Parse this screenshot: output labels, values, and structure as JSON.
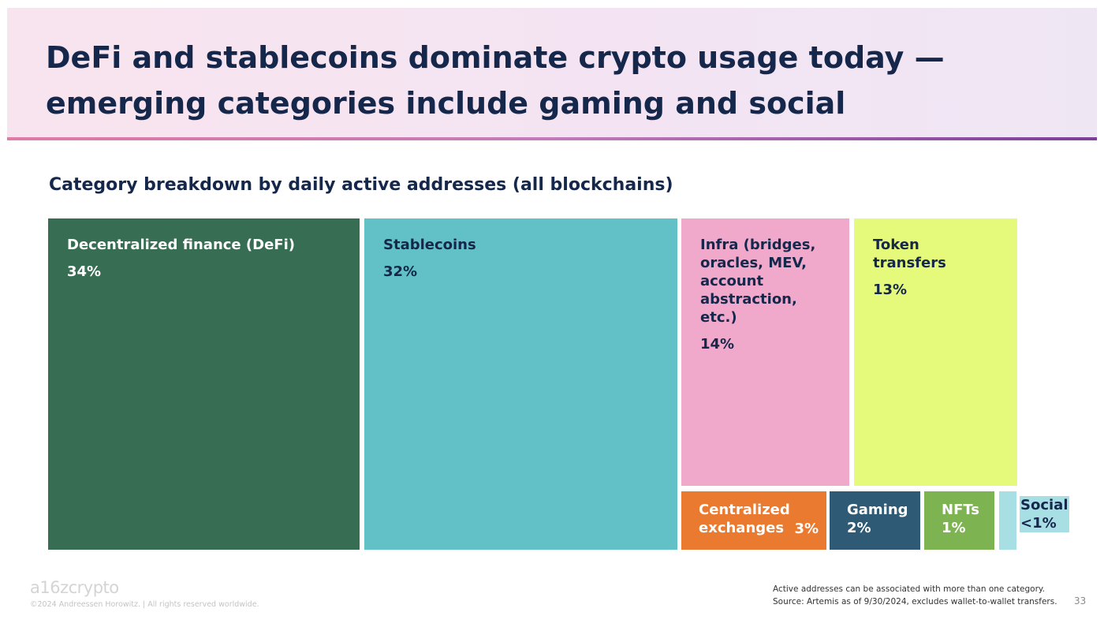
{
  "header": {
    "title": "DeFi and stablecoins dominate crypto usage today — emerging categories include gaming and social"
  },
  "chart_data": {
    "type": "treemap",
    "title": "Category breakdown by daily active addresses (all blockchains)",
    "items": [
      {
        "name": "Decentralized finance (DeFi)",
        "value_label": "34%",
        "value": 34,
        "color": "#376e53",
        "text_color": "#ffffff",
        "name_color": "#ffffff"
      },
      {
        "name": "Stablecoins",
        "value_label": "32%",
        "value": 32,
        "color": "#62c1c7",
        "text_color": "#15284b",
        "name_color": "#15284b"
      },
      {
        "name": "Infra (bridges, oracles, MEV, account abstraction, etc.)",
        "value_label": "14%",
        "value": 14,
        "color": "#f0a8cb",
        "text_color": "#15284b",
        "name_color": "#15284b"
      },
      {
        "name": "Token transfers",
        "value_label": "13%",
        "value": 13,
        "color": "#e5fa7a",
        "text_color": "#15284b",
        "name_color": "#15284b"
      },
      {
        "name": "Centralized exchanges",
        "value_label": "3%",
        "value": 3,
        "color": "#ea7a30",
        "text_color": "#ffffff",
        "name_color": "#ffffff"
      },
      {
        "name": "Gaming",
        "value_label": "2%",
        "value": 2,
        "color": "#2e5a75",
        "text_color": "#ffffff",
        "name_color": "#ffffff"
      },
      {
        "name": "NFTs",
        "value_label": "1%",
        "value": 1,
        "color": "#7db451",
        "text_color": "#ffffff",
        "name_color": "#ffffff"
      },
      {
        "name": "Social",
        "value_label": "<1%",
        "value": 0.5,
        "color": "#a8dfe5",
        "text_color": "#15284b",
        "name_color": "#15284b"
      }
    ]
  },
  "footer": {
    "logo": "a16zcrypto",
    "copyright": "©2024 Andreessen Horowitz. | All rights reserved worldwide.",
    "note_line1": "Active addresses can be associated with more than one category.",
    "note_line2": "Source: Artemis as of 9/30/2024, excludes wallet-to-wallet transfers.",
    "page_number": "33"
  }
}
